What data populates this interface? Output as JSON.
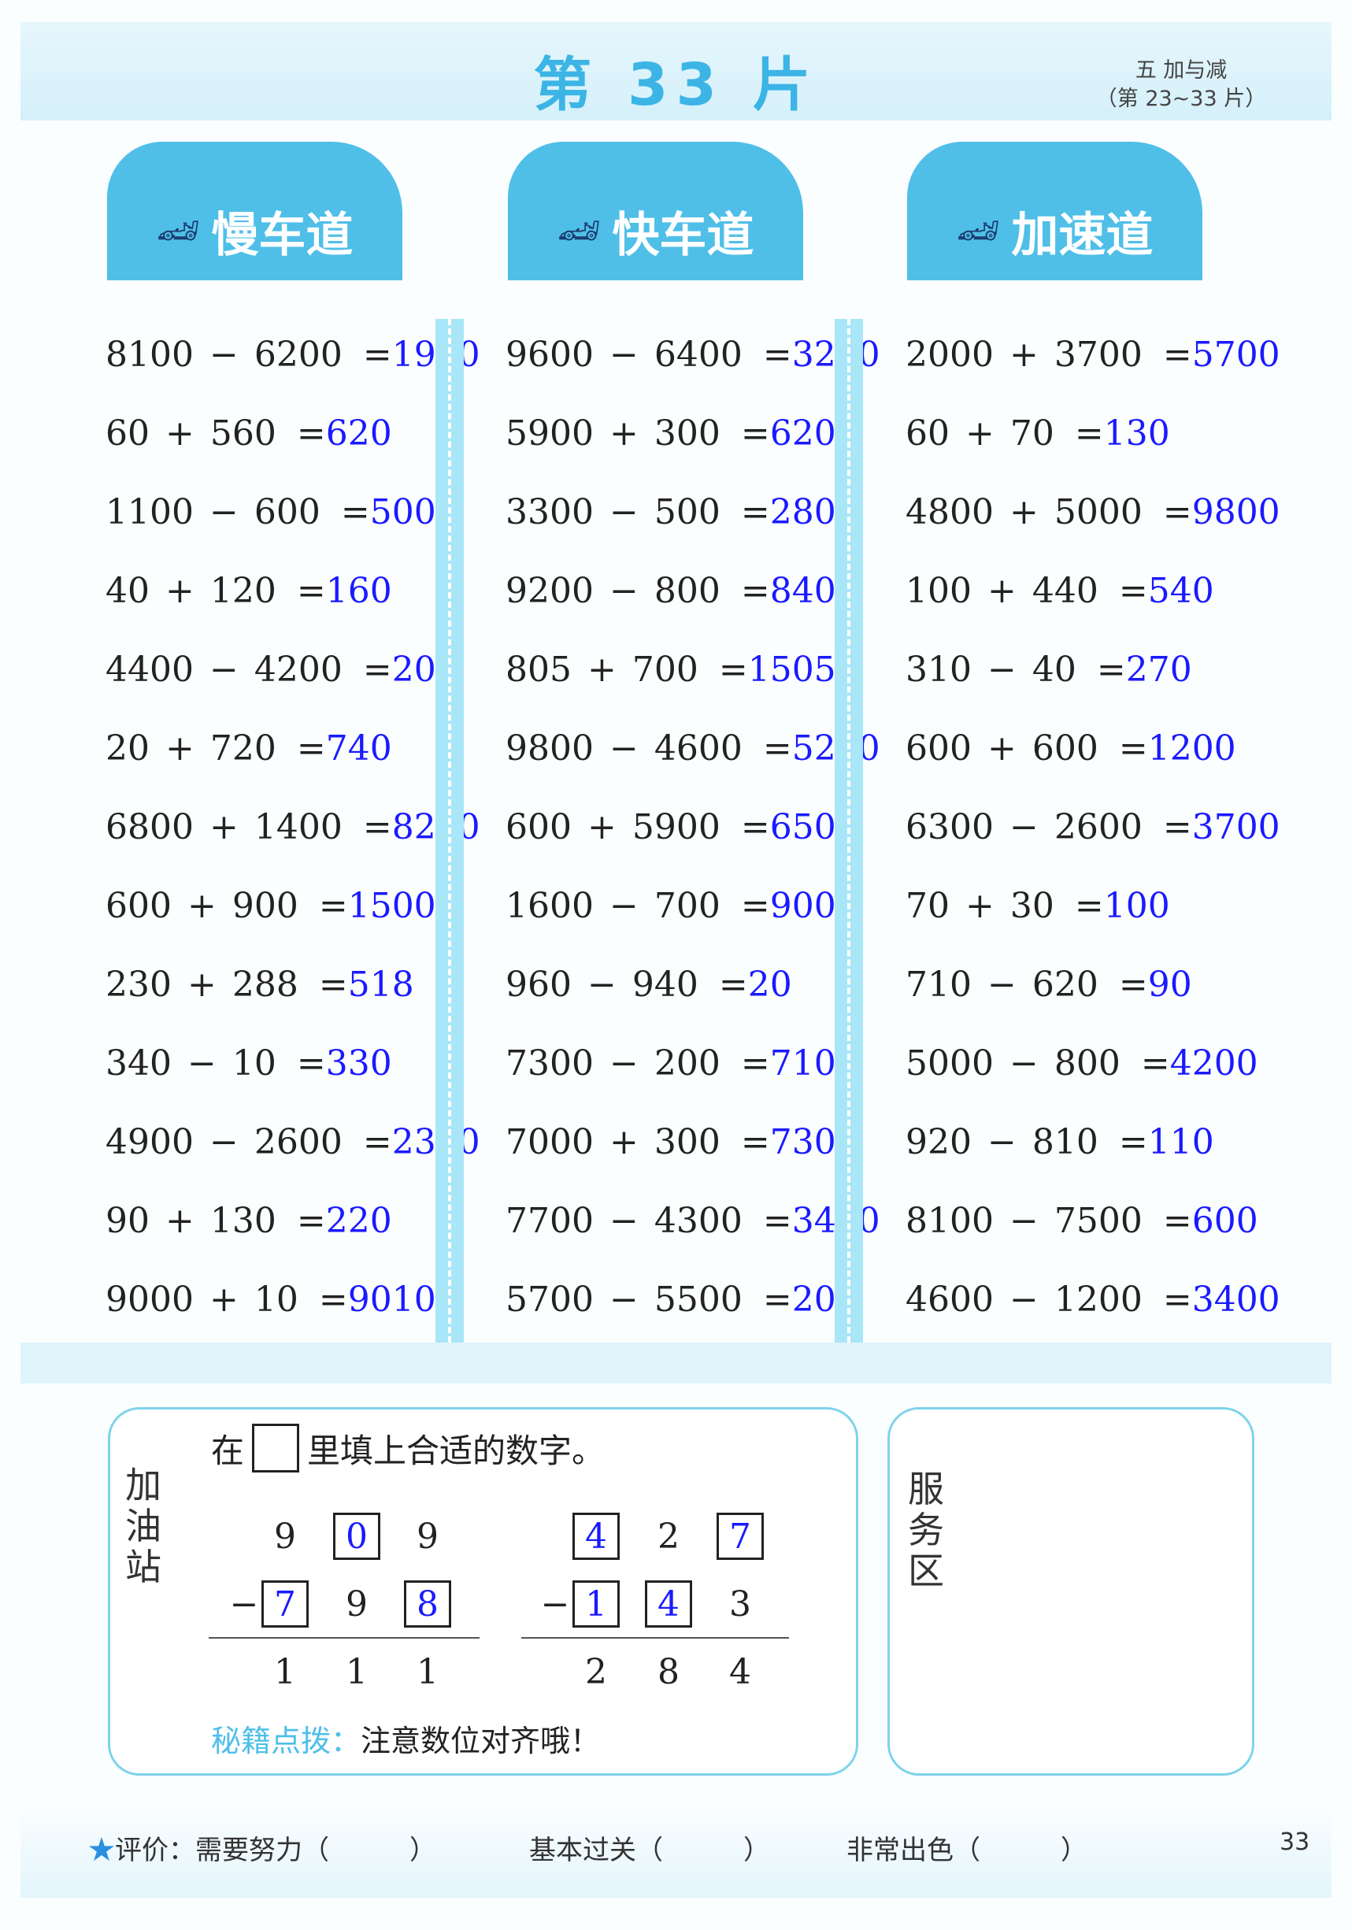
{
  "header": {
    "title": "第 33 片",
    "unit": "五  加与减",
    "range": "（第 23~33 片）"
  },
  "lanes": [
    "慢车道",
    "快车道",
    "加速道"
  ],
  "columns": [
    [
      [
        "8100",
        "−",
        "6200",
        "1900"
      ],
      [
        "60",
        "+",
        "560",
        "620"
      ],
      [
        "1100",
        "−",
        "600",
        "500"
      ],
      [
        "40",
        "+",
        "120",
        "160"
      ],
      [
        "4400",
        "−",
        "4200",
        "200"
      ],
      [
        "20",
        "+",
        "720",
        "740"
      ],
      [
        "6800",
        "+",
        "1400",
        "8200"
      ],
      [
        "600",
        "+",
        "900",
        "1500"
      ],
      [
        "230",
        "+",
        "288",
        "518"
      ],
      [
        "340",
        "−",
        "10",
        "330"
      ],
      [
        "4900",
        "−",
        "2600",
        "2300"
      ],
      [
        "90",
        "+",
        "130",
        "220"
      ],
      [
        "9000",
        "+",
        "10",
        "9010"
      ]
    ],
    [
      [
        "9600",
        "−",
        "6400",
        "3200"
      ],
      [
        "5900",
        "+",
        "300",
        "6200"
      ],
      [
        "3300",
        "−",
        "500",
        "2800"
      ],
      [
        "9200",
        "−",
        "800",
        "8400"
      ],
      [
        "805",
        "+",
        "700",
        "1505"
      ],
      [
        "9800",
        "−",
        "4600",
        "5200"
      ],
      [
        "600",
        "+",
        "5900",
        "6500"
      ],
      [
        "1600",
        "−",
        "700",
        "900"
      ],
      [
        "960",
        "−",
        "940",
        "20"
      ],
      [
        "7300",
        "−",
        "200",
        "7100"
      ],
      [
        "7000",
        "+",
        "300",
        "7300"
      ],
      [
        "7700",
        "−",
        "4300",
        "3400"
      ],
      [
        "5700",
        "−",
        "5500",
        "200"
      ]
    ],
    [
      [
        "2000",
        "+",
        "3700",
        "5700"
      ],
      [
        "60",
        "+",
        "70",
        "130"
      ],
      [
        "4800",
        "+",
        "5000",
        "9800"
      ],
      [
        "100",
        "+",
        "440",
        "540"
      ],
      [
        "310",
        "−",
        "40",
        "270"
      ],
      [
        "600",
        "+",
        "600",
        "1200"
      ],
      [
        "6300",
        "−",
        "2600",
        "3700"
      ],
      [
        "70",
        "+",
        "30",
        "100"
      ],
      [
        "710",
        "−",
        "620",
        "90"
      ],
      [
        "5000",
        "−",
        "800",
        "4200"
      ],
      [
        "920",
        "−",
        "810",
        "110"
      ],
      [
        "8100",
        "−",
        "7500",
        "600"
      ],
      [
        "4600",
        "−",
        "1200",
        "3400"
      ]
    ]
  ],
  "station": {
    "label": "加油站",
    "instruction_pre": "在",
    "instruction_post": "里填上合适的数字。",
    "problems": [
      {
        "top": [
          "9",
          "0",
          "9"
        ],
        "top_filled": [
          false,
          true,
          false
        ],
        "bottom": [
          "7",
          "9",
          "8"
        ],
        "bottom_filled": [
          true,
          false,
          true
        ],
        "result": [
          "1",
          "1",
          "1"
        ]
      },
      {
        "top": [
          "4",
          "2",
          "7"
        ],
        "top_filled": [
          true,
          false,
          true
        ],
        "bottom": [
          "1",
          "4",
          "3"
        ],
        "bottom_filled": [
          true,
          true,
          false
        ],
        "result": [
          "2",
          "8",
          "4"
        ]
      }
    ],
    "tip_label": "秘籍点拨：",
    "tip": "注意数位对齐哦！"
  },
  "service": {
    "label": "服务区"
  },
  "footer": {
    "eval": "评价：",
    "opt1": "需要努力（　　　）",
    "opt2": "基本过关（　　　）",
    "opt3": "非常出色（　　　）",
    "page": "33"
  },
  "colors": {
    "accent": "#4fbfe8",
    "answer": "#1a1aff"
  }
}
